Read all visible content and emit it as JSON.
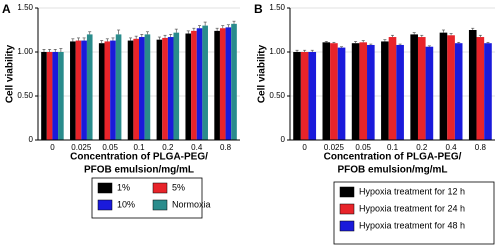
{
  "chart_data": [
    {
      "type": "bar",
      "panel": "A",
      "y_label": "Cell viability",
      "x_label": [
        "Concentration of PLGA-PEG/",
        "PFOB emulsion/mg/mL"
      ],
      "categories": [
        "0",
        "0.025",
        "0.05",
        "0.1",
        "0.2",
        "0.4",
        "0.8"
      ],
      "ylim": [
        0,
        1.5
      ],
      "yticks": [
        0,
        {
          "value": 0.5,
          "label": "0.50"
        },
        {
          "value": 1,
          "label": "1.00"
        },
        {
          "value": 1.5,
          "label": "1.50"
        }
      ],
      "series": [
        {
          "name": "1%",
          "color": "#000000",
          "values": [
            1.0,
            1.12,
            1.1,
            1.13,
            1.14,
            1.21,
            1.24
          ],
          "errors": [
            0.03,
            0.03,
            0.03,
            0.03,
            0.03,
            0.03,
            0.03
          ]
        },
        {
          "name": "5%",
          "color": "#e8242a",
          "values": [
            1.0,
            1.13,
            1.12,
            1.15,
            1.16,
            1.24,
            1.27
          ],
          "errors": [
            0.03,
            0.03,
            0.03,
            0.03,
            0.03,
            0.03,
            0.03
          ]
        },
        {
          "name": "10%",
          "color": "#1a1adb",
          "values": [
            1.0,
            1.13,
            1.13,
            1.17,
            1.17,
            1.27,
            1.28
          ],
          "errors": [
            0.03,
            0.03,
            0.03,
            0.03,
            0.03,
            0.03,
            0.03
          ]
        },
        {
          "name": "Normoxia",
          "color": "#2a8c8c",
          "values": [
            1.0,
            1.2,
            1.2,
            1.2,
            1.22,
            1.3,
            1.32
          ],
          "errors": [
            0.04,
            0.03,
            0.05,
            0.03,
            0.04,
            0.04,
            0.03
          ]
        }
      ]
    },
    {
      "type": "bar",
      "panel": "B",
      "y_label": "Cell viability",
      "x_label": [
        "Concentration of PLGA-PEG/",
        "PFOB emulsion/mg/mL"
      ],
      "categories": [
        "0",
        "0.025",
        "0.05",
        "0.1",
        "0.2",
        "0.4",
        "0.8"
      ],
      "ylim": [
        0,
        1.5
      ],
      "yticks": [
        0,
        {
          "value": 0.5,
          "label": "0.50"
        },
        {
          "value": 1,
          "label": "1.00"
        },
        {
          "value": 1.5,
          "label": "1.50"
        }
      ],
      "series": [
        {
          "name": "Hypoxia treatment for 12 h",
          "color": "#000000",
          "values": [
            1.0,
            1.11,
            1.1,
            1.12,
            1.2,
            1.22,
            1.25
          ],
          "errors": [
            0.02,
            0.01,
            0.02,
            0.02,
            0.02,
            0.03,
            0.02
          ]
        },
        {
          "name": "Hypoxia treatment for 24 h",
          "color": "#e8242a",
          "values": [
            1.0,
            1.1,
            1.11,
            1.17,
            1.17,
            1.19,
            1.17
          ],
          "errors": [
            0.02,
            0.01,
            0.02,
            0.02,
            0.02,
            0.02,
            0.02
          ]
        },
        {
          "name": "Hypoxia treatment for 48 h",
          "color": "#1a1adb",
          "values": [
            1.0,
            1.05,
            1.08,
            1.08,
            1.06,
            1.1,
            1.1
          ],
          "errors": [
            0.02,
            0.01,
            0.01,
            0.01,
            0.01,
            0.01,
            0.01
          ]
        }
      ]
    }
  ]
}
